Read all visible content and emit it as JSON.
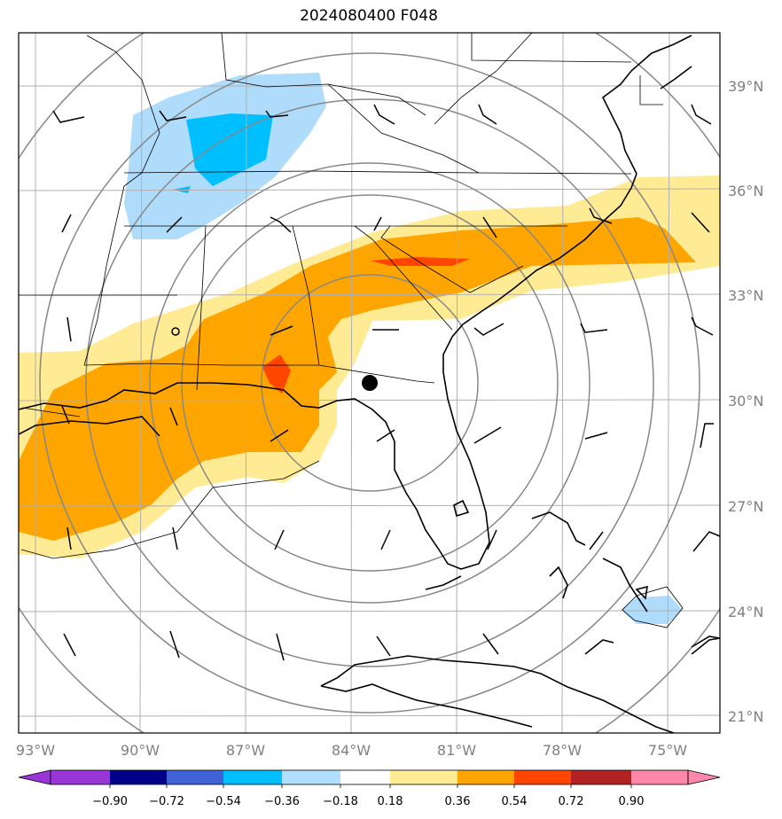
{
  "title": "2024080400 F048",
  "map": {
    "lon_ticks": [
      "93°W",
      "90°W",
      "87°W",
      "84°W",
      "81°W",
      "78°W",
      "75°W"
    ],
    "lat_ticks": [
      "39°N",
      "36°N",
      "33°N",
      "30°N",
      "27°N",
      "24°N",
      "21°N"
    ],
    "center_marker": {
      "lon": -83.6,
      "lat": 30.5
    },
    "range_rings": 5
  },
  "colorbar": {
    "labels": [
      "−0.90",
      "−0.72",
      "−0.54",
      "−0.36",
      "−0.18",
      "0.18",
      "0.36",
      "0.54",
      "0.72",
      "0.90"
    ],
    "colors": [
      "#9a35d8",
      "#00008b",
      "#3f63d6",
      "#00bfff",
      "#b0e0ff",
      "#ffffff",
      "#ffeb94",
      "#ffa500",
      "#ff4500",
      "#b22222",
      "#ff88aa"
    ]
  },
  "colors": {
    "light_blue": "#afdcfb",
    "blue": "#00bfff",
    "yellow": "#ffeb94",
    "orange": "#ffa500",
    "red": "#ff4500"
  }
}
